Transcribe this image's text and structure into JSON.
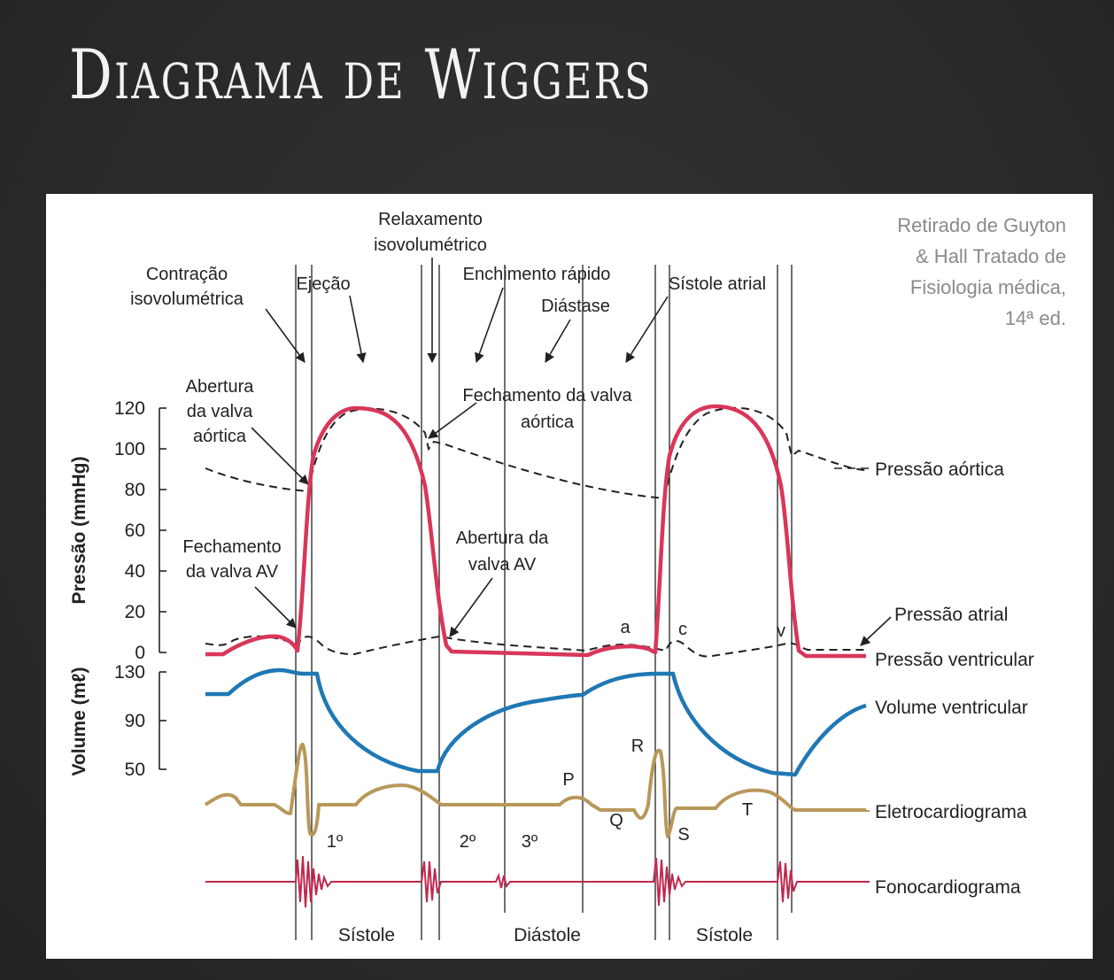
{
  "title": "Diagrama de Wiggers",
  "credit": [
    "Retirado de Guyton",
    "& Hall Tratado de",
    "Fisiologia médica,",
    "14ª ed."
  ],
  "phase_labels": {
    "contracao_1": "Contração",
    "contracao_2": "isovolumétrica",
    "ejecao": "Ejeção",
    "relax_1": "Relaxamento",
    "relax_2": "isovolumétrico",
    "enchimento": "Enchimento rápido",
    "diastase": "Diástase",
    "sistole_atrial": "Sístole atrial"
  },
  "event_labels": {
    "abertura_aortica": [
      "Abertura",
      "da valva",
      "aórtica"
    ],
    "fechamento_aortica": [
      "Fechamento da valva",
      "aórtica"
    ],
    "fechamento_av": [
      "Fechamento",
      "da valva AV"
    ],
    "abertura_av": [
      "Abertura da",
      "valva AV"
    ]
  },
  "axes": {
    "pressure_label": "Pressão (mmHg)",
    "pressure_ticks": [
      "120",
      "100",
      "80",
      "60",
      "40",
      "20",
      "0"
    ],
    "volume_label": "Volume (mℓ)",
    "volume_ticks": [
      "130",
      "90",
      "50"
    ]
  },
  "curve_labels": {
    "aortic": "Pressão aórtica",
    "atrial": "Pressão atrial",
    "ventricular_pressure": "Pressão ventricular",
    "ventricular_volume": "Volume ventricular",
    "ecg": "Eletrocardiograma",
    "phono": "Fonocardiograma"
  },
  "wave_labels": {
    "a": "a",
    "c": "c",
    "v": "v",
    "P": "P",
    "Q": "Q",
    "R": "R",
    "S": "S",
    "T": "T"
  },
  "heart_sounds": {
    "first": "1º",
    "second": "2º",
    "third": "3º"
  },
  "cycle_labels": {
    "systole1": "Sístole",
    "diastole": "Diástole",
    "systole2": "Sístole"
  },
  "colors": {
    "ventricular_pressure": "#d9365a",
    "ventricular_volume": "#1f78b4",
    "ecg": "#b8985a",
    "phono": "#c0284e",
    "dashed": "#222222"
  }
}
